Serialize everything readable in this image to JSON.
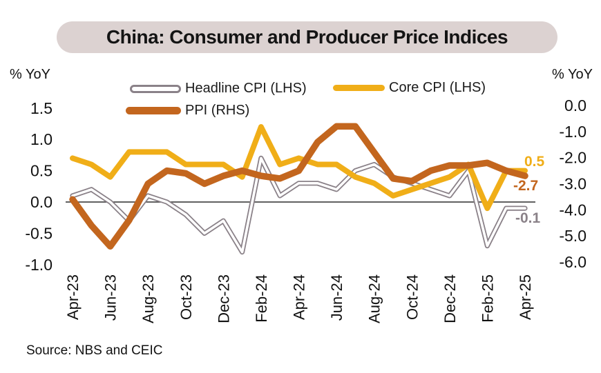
{
  "title": "China: Consumer and Producer Price Indices",
  "source": "Source: NBS and CEIC",
  "colors": {
    "banner_bg": "#DCD2D1",
    "headline_cpi": "#8A8188",
    "core_cpi": "#F0AE18",
    "ppi": "#C3661E",
    "axis_line": "#4a4a4a",
    "text": "#111111"
  },
  "chart_data": {
    "type": "line",
    "title": "China: Consumer and Producer Price Indices",
    "x": [
      "Apr-23",
      "May-23",
      "Jun-23",
      "Jul-23",
      "Aug-23",
      "Sep-23",
      "Oct-23",
      "Nov-23",
      "Dec-23",
      "Jan-24",
      "Feb-24",
      "Mar-24",
      "Apr-24",
      "May-24",
      "Jun-24",
      "Jul-24",
      "Aug-24",
      "Sep-24",
      "Oct-24",
      "Nov-24",
      "Dec-24",
      "Jan-25",
      "Feb-25",
      "Mar-25",
      "Apr-25"
    ],
    "x_tick_every": 2,
    "x_tick_labels": [
      "Apr-23",
      "Jun-23",
      "Aug-23",
      "Oct-23",
      "Dec-23",
      "Feb-24",
      "Apr-24",
      "Jun-24",
      "Aug-24",
      "Oct-24",
      "Dec-24",
      "Feb-25",
      "Apr-25"
    ],
    "left_axis": {
      "label": "% YoY",
      "ticks": [
        "1.5",
        "1.0",
        "0.5",
        "0.0",
        "-0.5",
        "-1.0"
      ],
      "range": [
        -1.0,
        1.5
      ]
    },
    "right_axis": {
      "label": "% YoY",
      "ticks": [
        "0.0",
        "-1.0",
        "-2.0",
        "-3.0",
        "-4.0",
        "-5.0",
        "-6.0"
      ],
      "range": [
        -6.0,
        0.0
      ]
    },
    "grid": false,
    "zero_line": true,
    "legend_position": "top",
    "series": [
      {
        "name": "Headline CPI (LHS)",
        "axis": "left",
        "color": "#8A8188",
        "line_style": "outline",
        "end_label": "-0.1",
        "values": [
          0.1,
          0.2,
          0.0,
          -0.3,
          0.1,
          0.0,
          -0.2,
          -0.5,
          -0.3,
          -0.8,
          0.7,
          0.1,
          0.3,
          0.3,
          0.2,
          0.5,
          0.6,
          0.4,
          0.3,
          0.2,
          0.1,
          0.5,
          -0.7,
          -0.1,
          -0.1
        ]
      },
      {
        "name": "Core CPI (LHS)",
        "axis": "left",
        "color": "#F0AE18",
        "line_style": "solid",
        "end_label": "0.5",
        "values": [
          0.7,
          0.6,
          0.4,
          0.8,
          0.8,
          0.8,
          0.6,
          0.6,
          0.6,
          0.4,
          1.2,
          0.6,
          0.7,
          0.6,
          0.6,
          0.4,
          0.3,
          0.1,
          0.2,
          0.3,
          0.4,
          0.6,
          -0.1,
          0.5,
          0.5
        ]
      },
      {
        "name": "PPI (RHS)",
        "axis": "right",
        "color": "#C3661E",
        "line_style": "solid",
        "end_label": "-2.7",
        "values": [
          -3.6,
          -4.6,
          -5.4,
          -4.4,
          -3.0,
          -2.5,
          -2.6,
          -3.0,
          -2.7,
          -2.5,
          -2.7,
          -2.8,
          -2.5,
          -1.4,
          -0.8,
          -0.8,
          -1.8,
          -2.8,
          -2.9,
          -2.5,
          -2.3,
          -2.3,
          -2.2,
          -2.5,
          -2.7
        ]
      }
    ]
  }
}
